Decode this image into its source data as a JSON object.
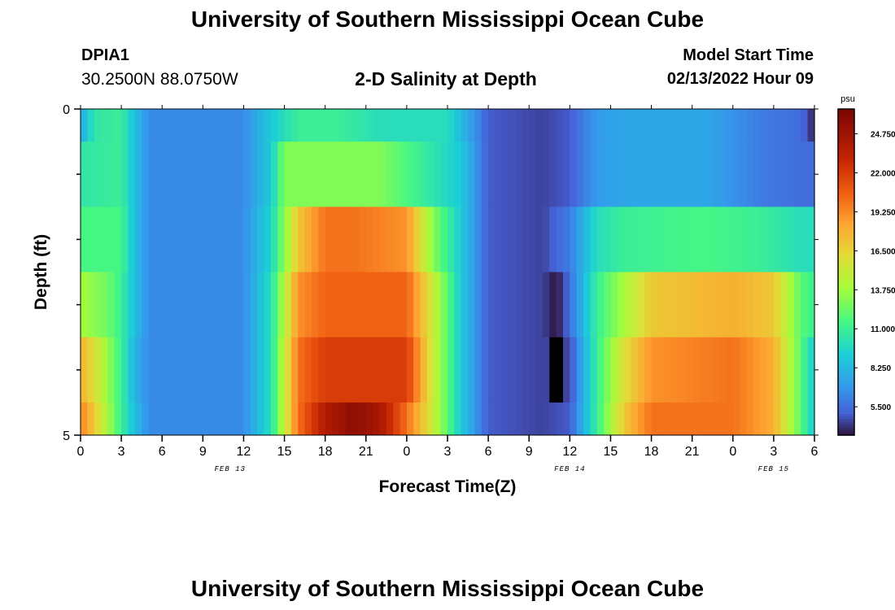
{
  "header": {
    "title": "University of Southern Mississippi Ocean Cube",
    "station_id": "DPIA1",
    "coordinates": "30.2500N  88.0750W",
    "subtitle": "2-D Salinity at Depth",
    "model_start_label": "Model Start Time",
    "model_start_value": "02/13/2022 Hour 09"
  },
  "footer": {
    "title": "University of Southern Mississippi Ocean Cube"
  },
  "colors": {
    "low": "#3b4fc8",
    "mid": "#f0e84a",
    "high": "#7a0403"
  },
  "chart_data": {
    "type": "heatmap",
    "title": "2-D Salinity at Depth",
    "xlabel": "Forecast Time(Z)",
    "ylabel": "Depth (ft)",
    "units": "psu",
    "x_hours_range": [
      0,
      54
    ],
    "y_range": [
      0,
      5
    ],
    "y_ticks": [
      "0",
      "5"
    ],
    "x_ticks": [
      {
        "hour": 0,
        "label": "0"
      },
      {
        "hour": 3,
        "label": "3"
      },
      {
        "hour": 6,
        "label": "6"
      },
      {
        "hour": 9,
        "label": "9"
      },
      {
        "hour": 12,
        "label": "12"
      },
      {
        "hour": 15,
        "label": "15"
      },
      {
        "hour": 18,
        "label": "18"
      },
      {
        "hour": 21,
        "label": "21"
      },
      {
        "hour": 24,
        "label": "0"
      },
      {
        "hour": 27,
        "label": "3"
      },
      {
        "hour": 30,
        "label": "6"
      },
      {
        "hour": 33,
        "label": "9"
      },
      {
        "hour": 36,
        "label": "12"
      },
      {
        "hour": 39,
        "label": "15"
      },
      {
        "hour": 42,
        "label": "18"
      },
      {
        "hour": 45,
        "label": "21"
      },
      {
        "hour": 48,
        "label": "0"
      },
      {
        "hour": 51,
        "label": "3"
      },
      {
        "hour": 54,
        "label": "6"
      }
    ],
    "date_labels": [
      {
        "hour": 11,
        "label": "FEB 13"
      },
      {
        "hour": 36,
        "label": "FEB 14"
      },
      {
        "hour": 51,
        "label": "FEB 15"
      }
    ],
    "colorbar": {
      "label": "psu",
      "min": 3.5,
      "max": 26.5,
      "ticks": [
        "24.750",
        "22.000",
        "19.250",
        "16.500",
        "13.750",
        "11.000",
        "8.250",
        "5.500"
      ]
    },
    "depth_layer_boundaries": [
      0,
      0.5,
      1.5,
      2.5,
      3.5,
      4.5,
      5
    ],
    "layer_keyframes": [
      [
        [
          0,
          7.5
        ],
        [
          1,
          10.5
        ],
        [
          3,
          11
        ],
        [
          4,
          8.5
        ],
        [
          5,
          6.5
        ],
        [
          12,
          6.5
        ],
        [
          14,
          9
        ],
        [
          16,
          11
        ],
        [
          19,
          11
        ],
        [
          22,
          10
        ],
        [
          24,
          10
        ],
        [
          27,
          10
        ],
        [
          30,
          5
        ],
        [
          34,
          4.5
        ],
        [
          36,
          5
        ],
        [
          38,
          7
        ],
        [
          40,
          7.5
        ],
        [
          46,
          7.5
        ],
        [
          50,
          6
        ],
        [
          53,
          5.5
        ],
        [
          54,
          3.8
        ]
      ],
      [
        [
          0,
          10.5
        ],
        [
          3,
          11
        ],
        [
          4,
          8.5
        ],
        [
          5,
          6.5
        ],
        [
          12,
          6.5
        ],
        [
          14,
          9
        ],
        [
          15,
          13
        ],
        [
          22,
          13
        ],
        [
          25,
          11
        ],
        [
          28,
          9
        ],
        [
          30,
          5
        ],
        [
          34,
          4.5
        ],
        [
          36,
          5
        ],
        [
          38,
          7
        ],
        [
          40,
          7.5
        ],
        [
          46,
          7.5
        ],
        [
          50,
          6
        ],
        [
          53,
          5.5
        ],
        [
          54,
          5.5
        ]
      ],
      [
        [
          0,
          11.5
        ],
        [
          3,
          11.5
        ],
        [
          4,
          8.5
        ],
        [
          5,
          6.5
        ],
        [
          12,
          6.5
        ],
        [
          14,
          9.5
        ],
        [
          16,
          17
        ],
        [
          18,
          20
        ],
        [
          20,
          20
        ],
        [
          24,
          19
        ],
        [
          26,
          13
        ],
        [
          28,
          9
        ],
        [
          30,
          5
        ],
        [
          34,
          4.5
        ],
        [
          36,
          6
        ],
        [
          38,
          10
        ],
        [
          40,
          11
        ],
        [
          46,
          11.5
        ],
        [
          50,
          11
        ],
        [
          53,
          10
        ],
        [
          54,
          10
        ]
      ],
      [
        [
          0,
          14
        ],
        [
          2,
          12.5
        ],
        [
          3,
          11
        ],
        [
          4,
          8.5
        ],
        [
          5,
          6.5
        ],
        [
          12,
          6.5
        ],
        [
          14,
          10
        ],
        [
          16,
          19
        ],
        [
          18,
          20.5
        ],
        [
          24,
          20.5
        ],
        [
          26,
          15
        ],
        [
          28,
          9
        ],
        [
          30,
          5
        ],
        [
          34,
          4.5
        ],
        [
          35,
          3.5
        ],
        [
          36,
          5.5
        ],
        [
          38,
          11
        ],
        [
          40,
          14
        ],
        [
          42,
          17
        ],
        [
          48,
          18
        ],
        [
          51,
          17
        ],
        [
          53,
          12
        ],
        [
          54,
          11
        ]
      ],
      [
        [
          0,
          18
        ],
        [
          1,
          16
        ],
        [
          3,
          11
        ],
        [
          4,
          8
        ],
        [
          5,
          6.5
        ],
        [
          12,
          6.5
        ],
        [
          14,
          10
        ],
        [
          16,
          20
        ],
        [
          18,
          22
        ],
        [
          24,
          22
        ],
        [
          26,
          15
        ],
        [
          28,
          9
        ],
        [
          30,
          5
        ],
        [
          34,
          4.5
        ],
        [
          35,
          0
        ],
        [
          36,
          4.5
        ],
        [
          38,
          11
        ],
        [
          40,
          16
        ],
        [
          42,
          19
        ],
        [
          48,
          20
        ],
        [
          51,
          18
        ],
        [
          53,
          12
        ],
        [
          54,
          9
        ]
      ],
      [
        [
          0,
          19.5
        ],
        [
          1,
          17
        ],
        [
          3,
          11
        ],
        [
          4,
          8.5
        ],
        [
          5,
          6.5
        ],
        [
          12,
          6.5
        ],
        [
          14,
          10
        ],
        [
          16,
          20
        ],
        [
          18,
          24
        ],
        [
          20,
          25.5
        ],
        [
          22,
          24.5
        ],
        [
          24,
          20
        ],
        [
          26,
          15
        ],
        [
          28,
          9
        ],
        [
          30,
          5
        ],
        [
          34,
          4.5
        ],
        [
          36,
          5
        ],
        [
          38,
          11
        ],
        [
          40,
          17
        ],
        [
          42,
          20
        ],
        [
          48,
          20
        ],
        [
          51,
          18
        ],
        [
          53,
          12
        ],
        [
          54,
          9
        ]
      ]
    ]
  }
}
